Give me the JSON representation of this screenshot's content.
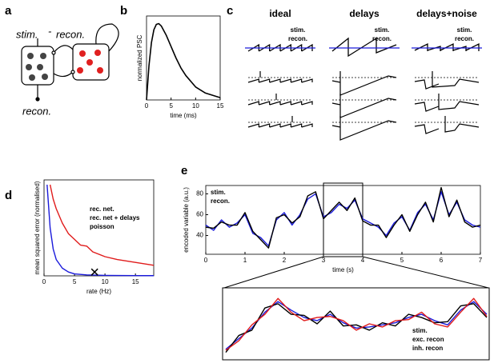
{
  "diagrams": {
    "a": {
      "label": "a",
      "stim": "stim.",
      "minus": "-",
      "recon_top": "recon.",
      "recon_bottom": "recon."
    },
    "c": {
      "label": "c",
      "columns": [
        "ideal",
        "delays",
        "delays+noise"
      ],
      "legend": [
        "stim.",
        "recon."
      ]
    }
  },
  "chart_data": [
    {
      "type": "line",
      "panel": "b",
      "xlabel": "time (ms)",
      "ylabel": "normalized PSC",
      "x": [
        0,
        0.5,
        1,
        1.5,
        2,
        2.5,
        3,
        4,
        5,
        6,
        7,
        8,
        10,
        12,
        15
      ],
      "series": [
        {
          "color": "#000000",
          "values": [
            0,
            0.45,
            0.75,
            0.92,
            0.99,
            1.0,
            0.97,
            0.85,
            0.7,
            0.55,
            0.42,
            0.32,
            0.17,
            0.09,
            0.03
          ]
        }
      ],
      "xlim": [
        0,
        15
      ],
      "ylim": [
        0,
        1.1
      ],
      "xticks": [
        0,
        5,
        10,
        15
      ]
    },
    {
      "type": "line",
      "panel": "d",
      "xlabel": "rate (Hz)",
      "ylabel": "mean squared error (normalised)",
      "legend": "upper right",
      "series": [
        {
          "name": "rec. net.",
          "color": "#1a1adb",
          "x": [
            0.5,
            1,
            1.5,
            2,
            3,
            4,
            5,
            7,
            10,
            15,
            18
          ],
          "values": [
            0.95,
            0.5,
            0.28,
            0.17,
            0.08,
            0.04,
            0.02,
            0.01,
            0.005,
            0.003,
            0.002
          ]
        },
        {
          "name": "rec. net + delays",
          "color": "#000000",
          "marker": "x",
          "x": [
            8.3
          ],
          "values": [
            0.04
          ]
        },
        {
          "name": "poisson",
          "color": "#e01b1b",
          "x": [
            1,
            1.5,
            2,
            3,
            4,
            5,
            6,
            7,
            8,
            10,
            12,
            15,
            18
          ],
          "values": [
            0.95,
            0.8,
            0.7,
            0.55,
            0.44,
            0.38,
            0.32,
            0.31,
            0.25,
            0.2,
            0.17,
            0.14,
            0.11
          ]
        }
      ],
      "xlim": [
        0,
        18
      ],
      "ylim": [
        0,
        1
      ],
      "xticks": [
        0,
        5,
        10,
        15
      ]
    },
    {
      "type": "line",
      "panel": "e",
      "xlabel": "time (s)",
      "ylabel": "encoded variable (a.u.)",
      "legend": "upper left",
      "x": [
        0,
        0.2,
        0.4,
        0.6,
        0.8,
        1,
        1.2,
        1.4,
        1.6,
        1.8,
        2,
        2.2,
        2.4,
        2.6,
        2.8,
        3,
        3.2,
        3.4,
        3.6,
        3.8,
        4,
        4.2,
        4.4,
        4.6,
        4.8,
        5,
        5.2,
        5.4,
        5.6,
        5.8,
        6,
        6.2,
        6.4,
        6.6,
        6.8,
        7
      ],
      "series": [
        {
          "name": "stim.",
          "color": "#1a1adb",
          "values": [
            50,
            45,
            55,
            48,
            52,
            60,
            42,
            38,
            30,
            55,
            62,
            50,
            60,
            75,
            80,
            58,
            62,
            70,
            66,
            74,
            56,
            52,
            48,
            40,
            52,
            58,
            45,
            62,
            70,
            55,
            82,
            60,
            72,
            55,
            50,
            48
          ]
        },
        {
          "name": "recon.",
          "color": "#000000",
          "values": [
            48,
            47,
            53,
            50,
            50,
            62,
            44,
            36,
            28,
            57,
            60,
            52,
            58,
            78,
            82,
            56,
            64,
            72,
            64,
            76,
            54,
            50,
            50,
            38,
            50,
            60,
            44,
            60,
            72,
            53,
            86,
            58,
            74,
            53,
            48,
            50
          ]
        }
      ],
      "xlim": [
        0,
        7
      ],
      "ylim": [
        22,
        88
      ],
      "xticks": [
        0,
        1,
        2,
        3,
        4,
        5,
        6,
        7
      ],
      "yticks": [
        40,
        60,
        80
      ]
    },
    {
      "type": "line",
      "legend": "lower right",
      "x": [
        3,
        3.05,
        3.1,
        3.15,
        3.2,
        3.25,
        3.3,
        3.35,
        3.4,
        3.45,
        3.5,
        3.55,
        3.6,
        3.65,
        3.7,
        3.75,
        3.8,
        3.85,
        3.9,
        3.95,
        4
      ],
      "series": [
        {
          "name": "stim.",
          "color": "#1a1adb",
          "values": [
            25,
            35,
            45,
            60,
            70,
            62,
            55,
            52,
            58,
            50,
            45,
            46,
            48,
            50,
            55,
            58,
            52,
            48,
            62,
            70,
            58
          ]
        },
        {
          "name": "exc. recon",
          "color": "#000000",
          "values": [
            22,
            38,
            43,
            64,
            68,
            58,
            57,
            49,
            61,
            47,
            48,
            43,
            50,
            47,
            58,
            55,
            50,
            51,
            66,
            68,
            55
          ]
        },
        {
          "name": "inh. recon",
          "color": "#e01b1b",
          "values": [
            24,
            33,
            48,
            58,
            73,
            60,
            52,
            55,
            56,
            52,
            43,
            49,
            46,
            52,
            53,
            60,
            49,
            46,
            60,
            73,
            56
          ]
        }
      ],
      "xlim": [
        3,
        4
      ],
      "ylim": [
        18,
        80
      ]
    }
  ]
}
